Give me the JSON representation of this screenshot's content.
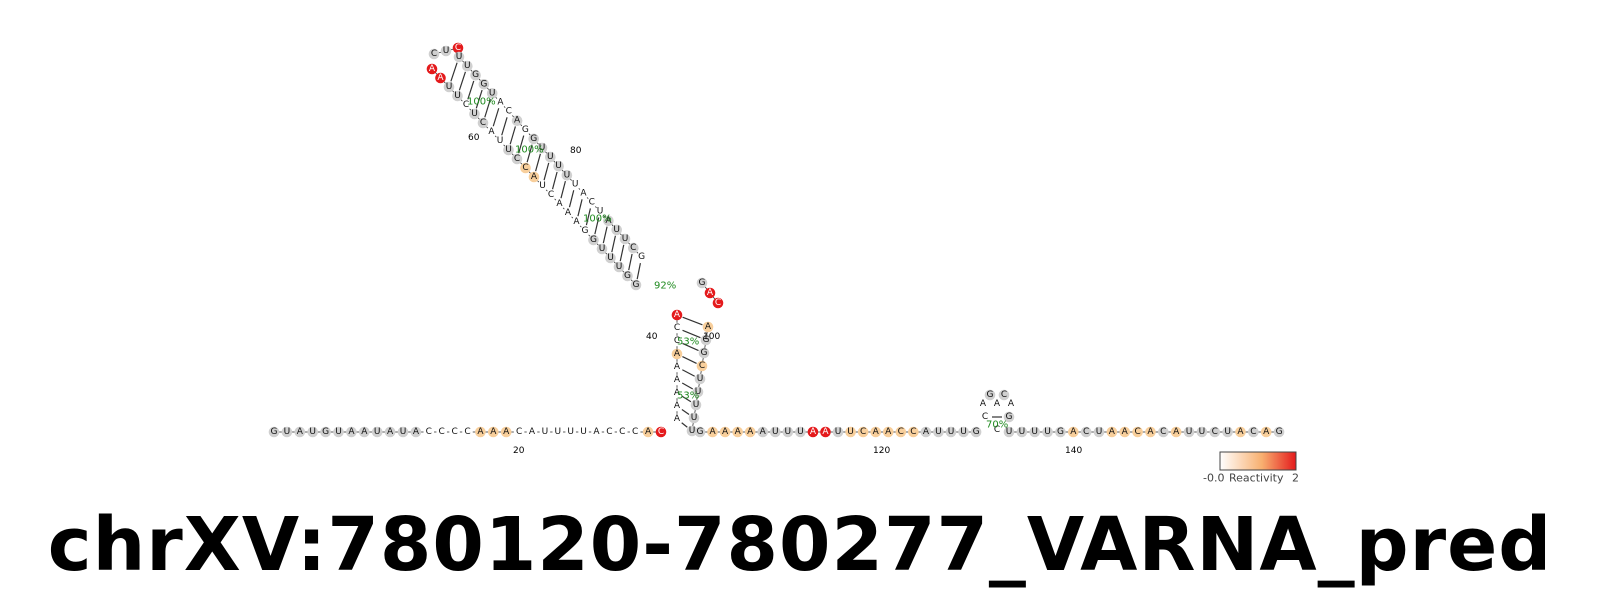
{
  "title": "chrXV:780120-780277_VARNA_pred",
  "colors": {
    "none": "#ffffff",
    "grey": "#d0d0d0",
    "light": "#f8cf9c",
    "orange": "#f0a05a",
    "red": "#e41a1c",
    "pct": "#1f8a1f"
  },
  "legend": {
    "min": "-0.0",
    "max": "2",
    "label": "Reactivity"
  },
  "base_strand": {
    "seq": "GUAUGUAAUAUACCCCAAACAUUUUACCCAC",
    "react": "GGGGGGGGGGGGWWWWLLLWWWWWWWWWWLR"
  },
  "left_stem": {
    "seq": "AAAAAACCA",
    "react": "WWWWWLWWR"
  },
  "helix_left": {
    "seq": "GGUUUGGAAACUACCUUACUCUUAA",
    "react": "GGGGGGWWWWWWLLGGWWGGWGGRR"
  },
  "hairpin_loop": {
    "seq": "CUC",
    "react": "GGR"
  },
  "helix_right": {
    "seq": "UUGGUACAGGUUUUUACUAUUCG",
    "react": "GGGGGWWGWGGGGGWWWWGGGGW"
  },
  "junction_loop": {
    "seq": "GAC",
    "react": "GRR"
  },
  "right_stem": {
    "seq": "AGGCUUUUU",
    "react": "LGGLGGGGG"
  },
  "mid_strand": {
    "seq": "GAAAAAUUUAAUUCAACCAUUUG",
    "react": "GLLLLGGGGRRGLLLLLLGGGGG"
  },
  "small_hairpin": {
    "seq": "ACAGCAGC",
    "react": "WWWGGWGW"
  },
  "tail_strand": {
    "seq": "UUUUGACUAACACAUUCUACAG",
    "react": "GGGGGLGGLLLLGLGGGGLGLG"
  },
  "pair_labels": [
    "100%",
    "100%",
    "100%",
    "92%",
    "53%",
    "53%",
    "70%"
  ],
  "index_labels": [
    "20",
    "40",
    "60",
    "80",
    "100",
    "120",
    "140"
  ]
}
